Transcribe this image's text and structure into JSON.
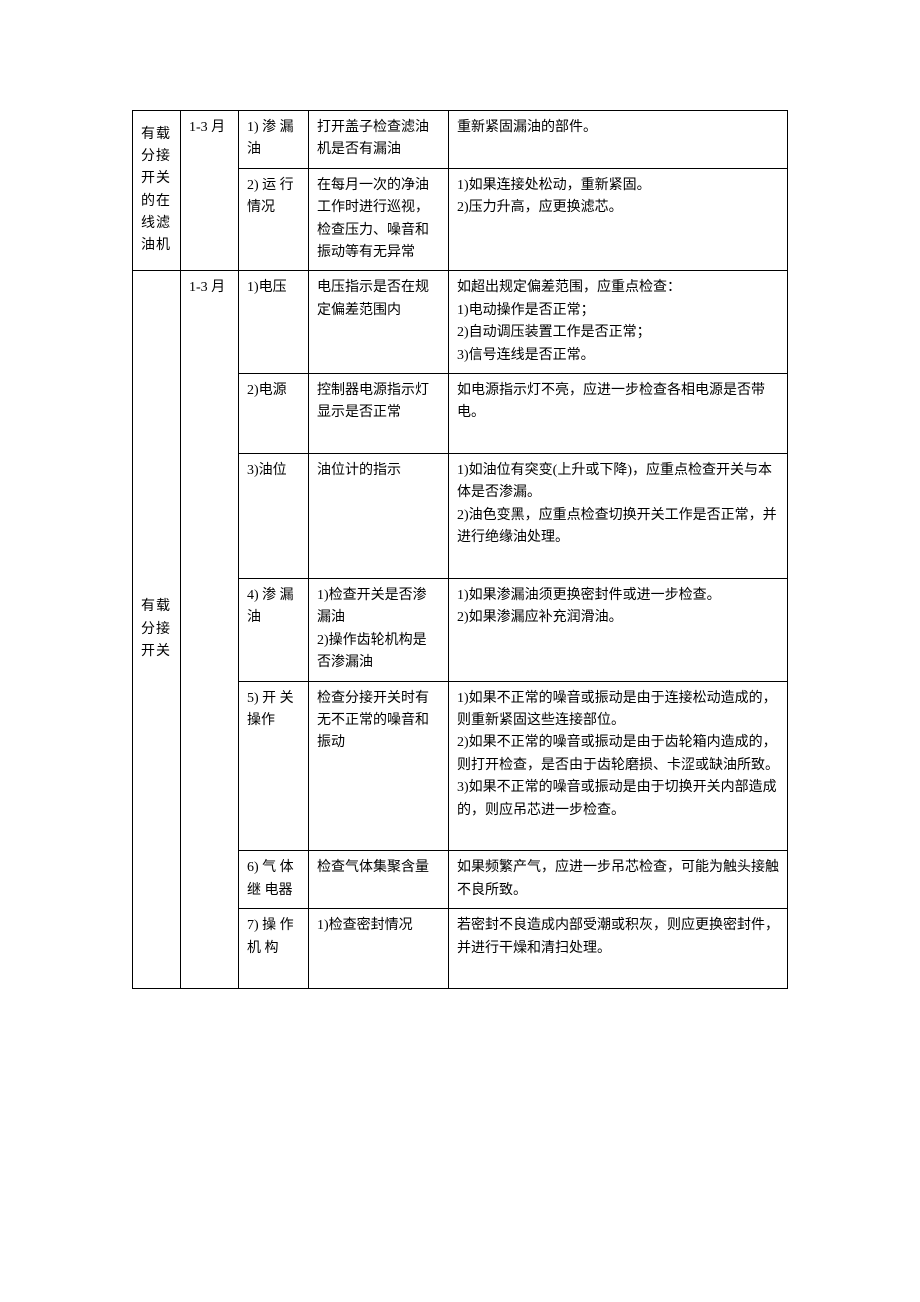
{
  "table": {
    "columns": {
      "col1_width": 48,
      "col2_width": 58,
      "col3_width": 70,
      "col4_width": 140
    },
    "border_color": "#000000",
    "border_width": 1.5,
    "background_color": "#ffffff",
    "text_color": "#000000",
    "font_family": "SimSun",
    "font_size": 14,
    "sections": [
      {
        "component": "有载分接开关的在线滤油机",
        "cycle": "1-3 月",
        "rows": [
          {
            "item": "1) 渗 漏油",
            "method": "打开盖子检查滤油机是否有漏油",
            "judgment": "重新紧固漏油的部件。"
          },
          {
            "item": "2) 运 行情况",
            "method": "在每月一次的净油工作时进行巡视，检查压力、噪音和振动等有无异常",
            "judgment": "1)如果连接处松动，重新紧固。\n2)压力升高，应更换滤芯。"
          }
        ]
      },
      {
        "component": "有载分接开关",
        "cycle": "1-3 月",
        "rows": [
          {
            "item": "1)电压",
            "method": "电压指示是否在规定偏差范围内",
            "judgment": "如超出规定偏差范围，应重点检查：\n1)电动操作是否正常；\n2)自动调压装置工作是否正常；\n3)信号连线是否正常。"
          },
          {
            "item": "2)电源",
            "method": "控制器电源指示灯显示是否正常",
            "judgment": "如电源指示灯不亮，应进一步检查各相电源是否带电。"
          },
          {
            "item": "3)油位",
            "method": "油位计的指示",
            "judgment": "1)如油位有突变(上升或下降)，应重点检查开关与本体是否渗漏。\n2)油色变黑，应重点检查切换开关工作是否正常，并进行绝缘油处理。"
          },
          {
            "item": "4) 渗 漏油",
            "method": "1)检查开关是否渗漏油\n2)操作齿轮机构是否渗漏油",
            "judgment": "1)如果渗漏油须更换密封件或进一步检查。\n2)如果渗漏应补充润滑油。"
          },
          {
            "item": "5) 开 关操作",
            "method": "检查分接开关时有无不正常的噪音和振动",
            "judgment": "1)如果不正常的噪音或振动是由于连接松动造成的，则重新紧固这些连接部位。\n2)如果不正常的噪音或振动是由于齿轮箱内造成的，则打开检查，是否由于齿轮磨损、卡涩或缺油所致。\n3)如果不正常的噪音或振动是由于切换开关内部造成的，则应吊芯进一步检查。"
          },
          {
            "item": "6) 气 体继 电器",
            "method": "检查气体集聚含量",
            "judgment": "如果频繁产气，应进一步吊芯检查，可能为触头接触不良所致。"
          },
          {
            "item": "7) 操 作机 构",
            "method": "1)检查密封情况",
            "judgment": "若密封不良造成内部受潮或积灰，则应更换密封件，并进行干燥和清扫处理。"
          }
        ]
      }
    ]
  },
  "row_extra_heights": {
    "s1r0": "",
    "s1r1": "\n\n",
    "s1r2": "\n\n",
    "s1r3": "\n",
    "s1r4": "\n\n",
    "s1r5": "\n",
    "s1r6": "\n\n"
  }
}
